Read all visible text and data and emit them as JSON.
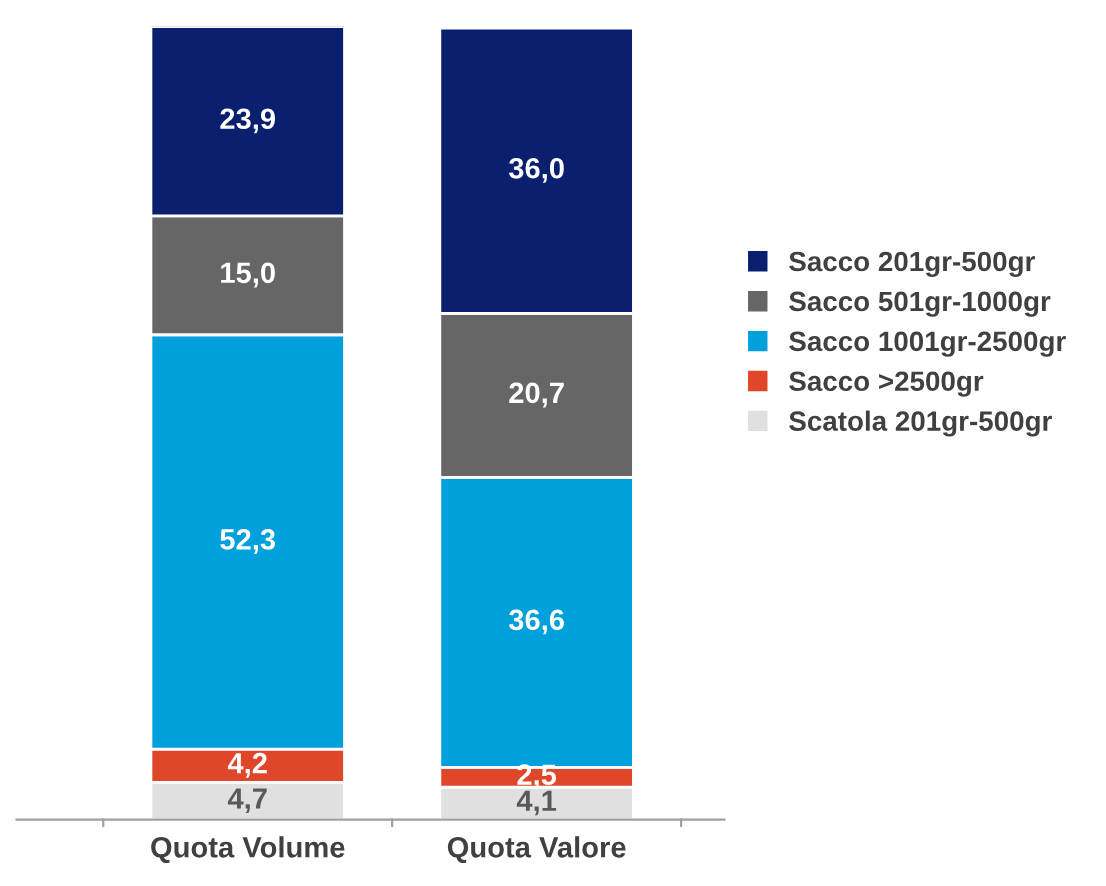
{
  "chart_data": {
    "type": "bar",
    "stacked": true,
    "categories": [
      "Quota Volume",
      "Quota Valore"
    ],
    "legend": "right",
    "series": [
      {
        "name": "Scatola 201gr-500gr",
        "color": "#e0e0e0",
        "values": [
          4.7,
          4.1
        ],
        "value_labels": [
          "4,7",
          "4,1"
        ]
      },
      {
        "name": "Sacco >2500gr",
        "color": "#e0472a",
        "values": [
          4.2,
          2.5
        ],
        "value_labels": [
          "4,2",
          "2,5"
        ]
      },
      {
        "name": "Sacco 1001gr-2500gr",
        "color": "#00a0dc",
        "values": [
          52.3,
          36.6
        ],
        "value_labels": [
          "52,3",
          "36,6"
        ]
      },
      {
        "name": "Sacco 501gr-1000gr",
        "color": "#666666",
        "values": [
          15.0,
          20.7
        ],
        "value_labels": [
          "15,0",
          "20,7"
        ]
      },
      {
        "name": "Sacco 201gr-500gr",
        "color": "#0a1f6e",
        "values": [
          23.9,
          36.0
        ],
        "value_labels": [
          "23,9",
          "36,0"
        ]
      }
    ]
  }
}
